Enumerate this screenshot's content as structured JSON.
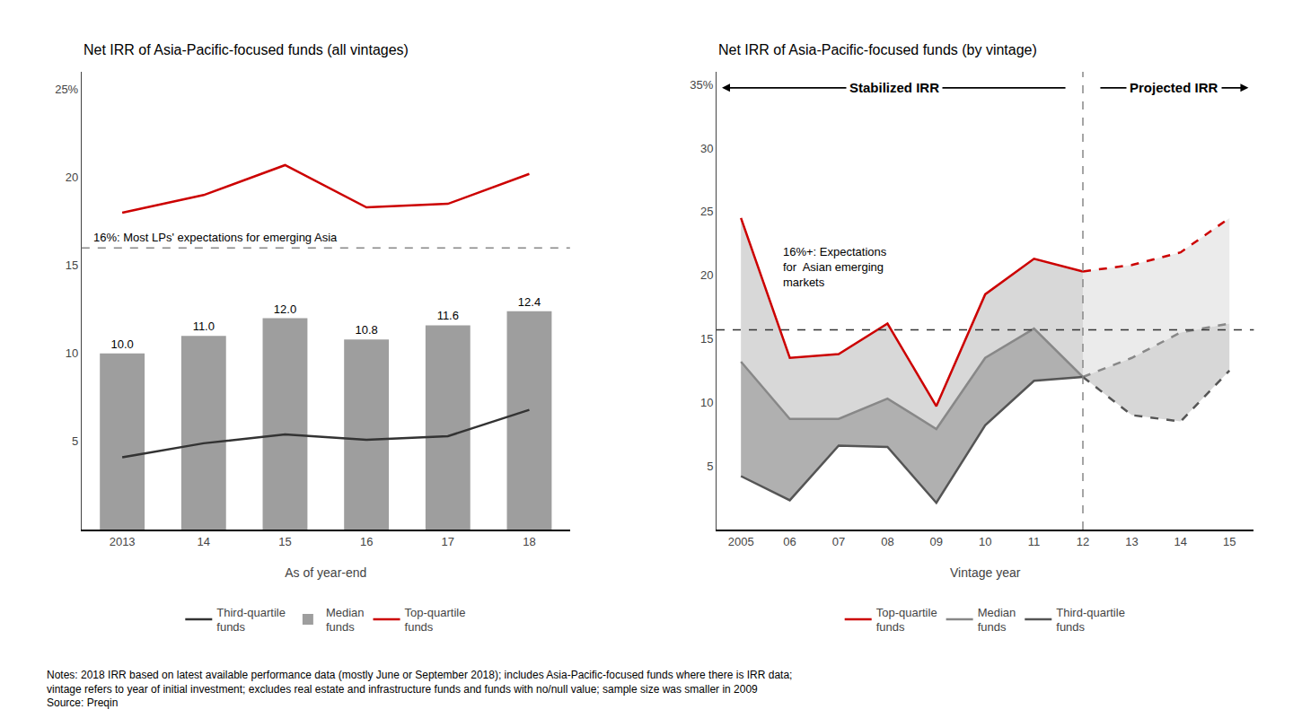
{
  "chart_data": [
    {
      "type": "bar",
      "title": "Net IRR of Asia-Pacific-focused funds (all vintages)",
      "xlabel": "As of year-end",
      "categories": [
        "2013",
        "14",
        "15",
        "16",
        "17",
        "18"
      ],
      "series": [
        {
          "name": "Top-quartile\nfunds",
          "type": "line",
          "color": "#CC0000",
          "values": [
            18.0,
            19.0,
            20.7,
            18.3,
            18.5,
            20.2
          ]
        },
        {
          "name": "Median\nfunds",
          "type": "bar",
          "color": "#9E9E9E",
          "values": [
            10.0,
            11.0,
            12.0,
            10.8,
            11.6,
            12.4
          ],
          "value_labels": [
            "10.0",
            "11.0",
            "12.0",
            "10.8",
            "11.6",
            "12.4"
          ],
          "data_labels": true
        },
        {
          "name": "Third-quartile\nfunds",
          "type": "line",
          "color": "#333333",
          "values": [
            4.1,
            4.9,
            5.4,
            5.1,
            5.3,
            6.8
          ]
        }
      ],
      "ylim": [
        0,
        26
      ],
      "yticks": [
        5,
        10,
        15,
        20,
        {
          "value": 25,
          "label": "25%"
        }
      ],
      "grid": false,
      "legend": "bottom",
      "hlines": [
        {
          "value": 16,
          "label": "16%: Most LPs' expectations for emerging Asia",
          "color": "#888888",
          "line_style": "dashed"
        }
      ]
    },
    {
      "type": "line",
      "title": "Net IRR of Asia-Pacific-focused funds (by vintage)",
      "xlabel": "Vintage year",
      "xlim": [
        2004.5,
        2015.5
      ],
      "xticks": [
        2005,
        {
          "value": 2006,
          "label": "06"
        },
        {
          "value": 2007,
          "label": "07"
        },
        {
          "value": 2008,
          "label": "08"
        },
        {
          "value": 2009,
          "label": "09"
        },
        {
          "value": 2010,
          "label": "10"
        },
        {
          "value": 2011,
          "label": "11"
        },
        {
          "value": 2012,
          "label": "12"
        },
        {
          "value": 2013,
          "label": "13"
        },
        {
          "value": 2014,
          "label": "14"
        },
        {
          "value": 2015,
          "label": "15"
        }
      ],
      "ylim": [
        0,
        36
      ],
      "yticks": [
        5,
        10,
        15,
        20,
        25,
        30,
        {
          "value": 35,
          "label": "35%"
        }
      ],
      "grid": false,
      "legend": "bottom",
      "bands": [
        {
          "x": [
            2005,
            2006,
            2007,
            2008,
            2009,
            2010,
            2011,
            2012
          ],
          "lower": [
            4.2,
            2.3,
            6.6,
            6.5,
            2.1,
            8.2,
            11.7,
            12.0
          ],
          "upper": [
            13.2,
            8.7,
            8.7,
            10.3,
            7.9,
            13.5,
            15.8,
            12.0
          ],
          "color": "#B0B0B0",
          "line_style": "solid"
        },
        {
          "x": [
            2005,
            2006,
            2007,
            2008,
            2009,
            2010,
            2011,
            2012
          ],
          "lower": [
            13.2,
            8.7,
            8.7,
            10.3,
            7.9,
            13.5,
            15.8,
            12.0
          ],
          "upper": [
            24.5,
            13.5,
            13.8,
            16.2,
            9.7,
            18.5,
            21.3,
            20.3
          ],
          "color": "#D8D8D8",
          "line_style": "solid"
        },
        {
          "x": [
            2012,
            2013,
            2014,
            2015
          ],
          "lower": [
            12.0,
            9.0,
            8.5,
            12.5
          ],
          "upper": [
            12.0,
            13.5,
            15.5,
            16.2
          ],
          "color": "#B0B0B0",
          "line_style": "dashed"
        },
        {
          "x": [
            2012,
            2013,
            2014,
            2015
          ],
          "lower": [
            12.0,
            13.5,
            15.5,
            16.2
          ],
          "upper": [
            20.3,
            20.8,
            21.8,
            24.5
          ],
          "color": "#D8D8D8",
          "line_style": "dashed"
        }
      ],
      "series": [
        {
          "name": "Top-quartile\nfunds",
          "color": "#CC0000",
          "line_style": "solid",
          "x": [
            2005,
            2006,
            2007,
            2008,
            2009,
            2010,
            2011,
            2012
          ],
          "values": [
            24.5,
            13.5,
            13.8,
            16.2,
            9.7,
            18.5,
            21.3,
            20.3
          ]
        },
        {
          "name": "Median\nfunds",
          "color": "#888888",
          "line_style": "solid",
          "x": [
            2005,
            2006,
            2007,
            2008,
            2009,
            2010,
            2011,
            2012
          ],
          "values": [
            13.2,
            8.7,
            8.7,
            10.3,
            7.9,
            13.5,
            15.8,
            12.0
          ]
        },
        {
          "name": "Third-quartile\nfunds",
          "color": "#555555",
          "line_style": "solid",
          "x": [
            2005,
            2006,
            2007,
            2008,
            2009,
            2010,
            2011,
            2012
          ],
          "values": [
            4.2,
            2.3,
            6.6,
            6.5,
            2.1,
            8.2,
            11.7,
            12.0
          ]
        },
        {
          "color": "#CC0000",
          "line_style": "dashed",
          "x": [
            2012,
            2013,
            2014,
            2015
          ],
          "values": [
            20.3,
            20.8,
            21.8,
            24.5
          ]
        },
        {
          "color": "#888888",
          "line_style": "dashed",
          "x": [
            2012,
            2013,
            2014,
            2015
          ],
          "values": [
            12.0,
            13.5,
            15.5,
            16.2
          ]
        },
        {
          "color": "#555555",
          "line_style": "dashed",
          "x": [
            2012,
            2013,
            2014,
            2015
          ],
          "values": [
            12.0,
            9.0,
            8.5,
            12.5
          ]
        }
      ],
      "hlines": [
        {
          "value": 15.7,
          "color": "#333333",
          "line_style": "dashed"
        }
      ],
      "vlines": [
        {
          "value": 2012,
          "color": "#888888",
          "line_style": "dashed"
        }
      ],
      "annotations": [
        "16%+: Expectations\nfor  Asian emerging\nmarkets"
      ],
      "arrows": [
        {
          "label": "Stabilized IRR",
          "direction": "left"
        },
        {
          "label": "Projected IRR",
          "direction": "right"
        }
      ]
    }
  ],
  "notes": "Notes: 2018 IRR based on latest available performance data (mostly June or September 2018); includes Asia-Pacific-focused funds where there is IRR data;\nvintage refers to year of initial investment; excludes real estate and infrastructure funds and funds with no/null value; sample size was smaller in 2009\nSource: Preqin"
}
